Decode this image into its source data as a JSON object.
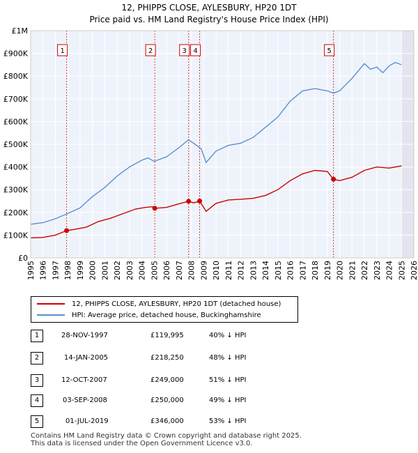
{
  "title_line1": "12, PHIPPS CLOSE, AYLESBURY, HP20 1DT",
  "title_line2": "Price paid vs. HM Land Registry's House Price Index (HPI)",
  "chart_data": {
    "type": "line",
    "xlim": [
      1995,
      2026
    ],
    "ylim": [
      0,
      1000000
    ],
    "y_ticks": [
      0,
      100000,
      200000,
      300000,
      400000,
      500000,
      600000,
      700000,
      800000,
      900000,
      1000000
    ],
    "y_tick_labels": [
      "£0",
      "£100K",
      "£200K",
      "£300K",
      "£400K",
      "£500K",
      "£600K",
      "£700K",
      "£800K",
      "£900K",
      "£1M"
    ],
    "x_ticks": [
      1995,
      1996,
      1997,
      1998,
      1999,
      2000,
      2001,
      2002,
      2003,
      2004,
      2005,
      2006,
      2007,
      2008,
      2009,
      2010,
      2011,
      2012,
      2013,
      2014,
      2015,
      2016,
      2017,
      2018,
      2019,
      2020,
      2021,
      2022,
      2023,
      2024,
      2025,
      2026
    ],
    "future_shade_from": 2025.0,
    "series": [
      {
        "name": "12, PHIPPS CLOSE, AYLESBURY, HP20 1DT (detached house)",
        "color": "#cc0000",
        "points": [
          [
            1995.0,
            88000
          ],
          [
            1996.0,
            90000
          ],
          [
            1997.0,
            100000
          ],
          [
            1997.9,
            119995
          ],
          [
            1998.5,
            125000
          ],
          [
            1999.5,
            135000
          ],
          [
            2000.5,
            160000
          ],
          [
            2001.5,
            175000
          ],
          [
            2002.5,
            195000
          ],
          [
            2003.5,
            215000
          ],
          [
            2004.3,
            222000
          ],
          [
            2004.9,
            225000
          ],
          [
            2005.04,
            218250
          ],
          [
            2006.0,
            222000
          ],
          [
            2007.0,
            238000
          ],
          [
            2007.78,
            249000
          ],
          [
            2008.2,
            242000
          ],
          [
            2008.67,
            250000
          ],
          [
            2009.2,
            205000
          ],
          [
            2010.0,
            240000
          ],
          [
            2011.0,
            255000
          ],
          [
            2012.0,
            258000
          ],
          [
            2013.0,
            262000
          ],
          [
            2014.0,
            275000
          ],
          [
            2015.0,
            300000
          ],
          [
            2016.0,
            340000
          ],
          [
            2017.0,
            370000
          ],
          [
            2018.0,
            385000
          ],
          [
            2019.0,
            380000
          ],
          [
            2019.5,
            346000
          ],
          [
            2020.0,
            340000
          ],
          [
            2021.0,
            355000
          ],
          [
            2022.0,
            385000
          ],
          [
            2023.0,
            400000
          ],
          [
            2024.0,
            395000
          ],
          [
            2025.0,
            405000
          ]
        ]
      },
      {
        "name": "HPI: Average price, detached house, Buckinghamshire",
        "color": "#5b8fd0",
        "points": [
          [
            1995.0,
            148000
          ],
          [
            1996.0,
            155000
          ],
          [
            1997.0,
            172000
          ],
          [
            1998.0,
            195000
          ],
          [
            1999.0,
            220000
          ],
          [
            2000.0,
            270000
          ],
          [
            2001.0,
            310000
          ],
          [
            2002.0,
            360000
          ],
          [
            2003.0,
            400000
          ],
          [
            2004.0,
            430000
          ],
          [
            2004.5,
            440000
          ],
          [
            2005.0,
            425000
          ],
          [
            2006.0,
            445000
          ],
          [
            2007.0,
            485000
          ],
          [
            2007.78,
            520000
          ],
          [
            2008.3,
            500000
          ],
          [
            2008.8,
            480000
          ],
          [
            2009.2,
            420000
          ],
          [
            2010.0,
            470000
          ],
          [
            2011.0,
            495000
          ],
          [
            2012.0,
            505000
          ],
          [
            2013.0,
            530000
          ],
          [
            2014.0,
            575000
          ],
          [
            2015.0,
            620000
          ],
          [
            2016.0,
            690000
          ],
          [
            2017.0,
            735000
          ],
          [
            2018.0,
            745000
          ],
          [
            2019.0,
            735000
          ],
          [
            2019.5,
            725000
          ],
          [
            2020.0,
            735000
          ],
          [
            2021.0,
            790000
          ],
          [
            2022.0,
            855000
          ],
          [
            2022.5,
            830000
          ],
          [
            2023.0,
            840000
          ],
          [
            2023.5,
            815000
          ],
          [
            2024.0,
            845000
          ],
          [
            2024.5,
            860000
          ],
          [
            2025.0,
            850000
          ]
        ]
      }
    ],
    "sales": [
      {
        "n": "1",
        "x": 1997.91
      },
      {
        "n": "2",
        "x": 2005.04
      },
      {
        "n": "3",
        "x": 2007.78
      },
      {
        "n": "4",
        "x": 2008.67
      },
      {
        "n": "5",
        "x": 2019.5
      }
    ]
  },
  "legend": {
    "property": "12, PHIPPS CLOSE, AYLESBURY, HP20 1DT (detached house)",
    "hpi": "HPI: Average price, detached house, Buckinghamshire",
    "property_color": "#cc0000",
    "hpi_color": "#5b8fd0"
  },
  "table": [
    {
      "n": "1",
      "date": "28-NOV-1997",
      "price": "£119,995",
      "hpi": "40% ↓ HPI"
    },
    {
      "n": "2",
      "date": "14-JAN-2005",
      "price": "£218,250",
      "hpi": "48% ↓ HPI"
    },
    {
      "n": "3",
      "date": "12-OCT-2007",
      "price": "£249,000",
      "hpi": "51% ↓ HPI"
    },
    {
      "n": "4",
      "date": "03-SEP-2008",
      "price": "£250,000",
      "hpi": "49% ↓ HPI"
    },
    {
      "n": "5",
      "date": "01-JUL-2019",
      "price": "£346,000",
      "hpi": "53% ↓ HPI"
    }
  ],
  "footer_line1": "Contains HM Land Registry data © Crown copyright and database right 2025.",
  "footer_line2": "This data is licensed under the Open Government Licence v3.0."
}
